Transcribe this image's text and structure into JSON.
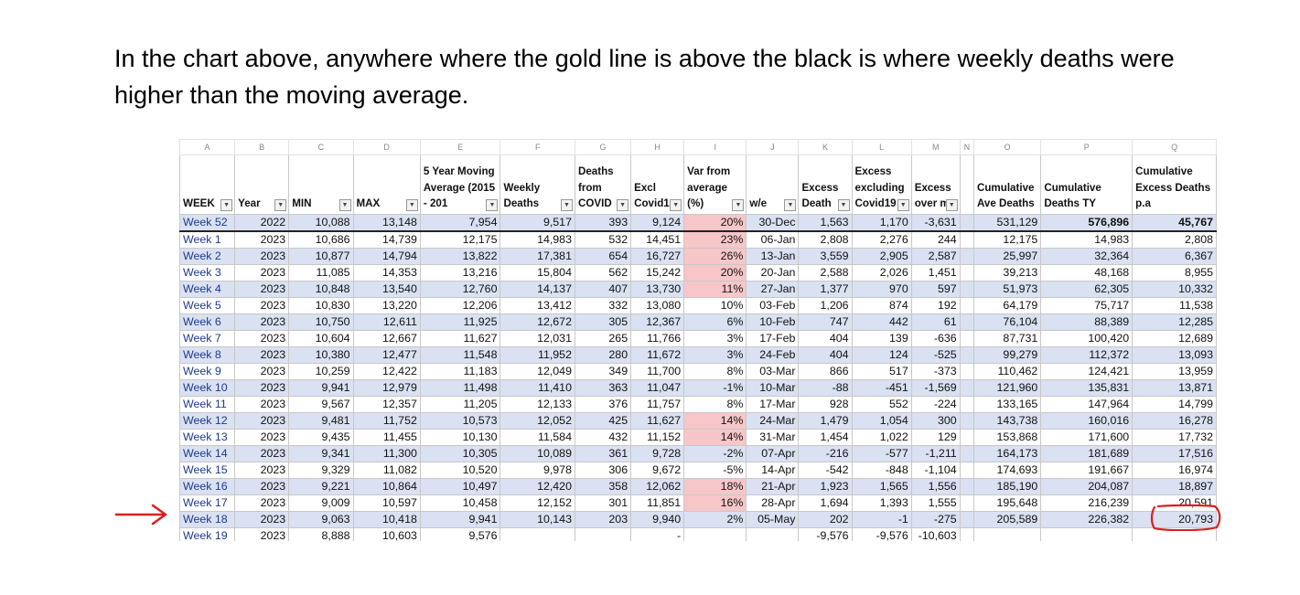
{
  "caption": "In the chart above, anywhere where the gold line is above the black is where weekly deaths were higher than the moving average.",
  "column_letters": [
    "A",
    "B",
    "C",
    "D",
    "E",
    "F",
    "G",
    "H",
    "I",
    "J",
    "K",
    "L",
    "M",
    "N",
    "O",
    "P",
    "Q"
  ],
  "headers": [
    {
      "text": "WEEK",
      "filter": true
    },
    {
      "text": "Year",
      "filter": true
    },
    {
      "text": "MIN",
      "filter": true
    },
    {
      "text": "MAX",
      "filter": true
    },
    {
      "text": "5 Year Moving Average (2015 - 201",
      "filter": true
    },
    {
      "text": "Weekly Deaths",
      "filter": true
    },
    {
      "text": "Deaths from COVID",
      "filter": true
    },
    {
      "text": "Excl Covid1",
      "filter": true
    },
    {
      "text": "Var from average (%)",
      "filter": true
    },
    {
      "text": "w/e",
      "filter": true
    },
    {
      "text": "Excess Death",
      "filter": true
    },
    {
      "text": "Excess excluding Covid19",
      "filter": true
    },
    {
      "text": "Excess over m",
      "filter": true
    },
    {
      "text": "",
      "filter": false
    },
    {
      "text": "Cumulative Ave Deaths",
      "filter": false
    },
    {
      "text": "Cumulative Deaths TY",
      "filter": false
    },
    {
      "text": "Cumulative Excess Deaths p.a",
      "filter": false
    }
  ],
  "rows": [
    [
      "Week 52",
      "2022",
      "10,088",
      "13,148",
      "7,954",
      "9,517",
      "393",
      "9,124",
      "20%",
      "30-Dec",
      "1,563",
      "1,170",
      "-3,631",
      "",
      "531,129",
      "576,896",
      "45,767"
    ],
    [
      "Week 1",
      "2023",
      "10,686",
      "14,739",
      "12,175",
      "14,983",
      "532",
      "14,451",
      "23%",
      "06-Jan",
      "2,808",
      "2,276",
      "244",
      "",
      "12,175",
      "14,983",
      "2,808"
    ],
    [
      "Week 2",
      "2023",
      "10,877",
      "14,794",
      "13,822",
      "17,381",
      "654",
      "16,727",
      "26%",
      "13-Jan",
      "3,559",
      "2,905",
      "2,587",
      "",
      "25,997",
      "32,364",
      "6,367"
    ],
    [
      "Week 3",
      "2023",
      "11,085",
      "14,353",
      "13,216",
      "15,804",
      "562",
      "15,242",
      "20%",
      "20-Jan",
      "2,588",
      "2,026",
      "1,451",
      "",
      "39,213",
      "48,168",
      "8,955"
    ],
    [
      "Week 4",
      "2023",
      "10,848",
      "13,540",
      "12,760",
      "14,137",
      "407",
      "13,730",
      "11%",
      "27-Jan",
      "1,377",
      "970",
      "597",
      "",
      "51,973",
      "62,305",
      "10,332"
    ],
    [
      "Week 5",
      "2023",
      "10,830",
      "13,220",
      "12,206",
      "13,412",
      "332",
      "13,080",
      "10%",
      "03-Feb",
      "1,206",
      "874",
      "192",
      "",
      "64,179",
      "75,717",
      "11,538"
    ],
    [
      "Week 6",
      "2023",
      "10,750",
      "12,611",
      "11,925",
      "12,672",
      "305",
      "12,367",
      "6%",
      "10-Feb",
      "747",
      "442",
      "61",
      "",
      "76,104",
      "88,389",
      "12,285"
    ],
    [
      "Week 7",
      "2023",
      "10,604",
      "12,667",
      "11,627",
      "12,031",
      "265",
      "11,766",
      "3%",
      "17-Feb",
      "404",
      "139",
      "-636",
      "",
      "87,731",
      "100,420",
      "12,689"
    ],
    [
      "Week 8",
      "2023",
      "10,380",
      "12,477",
      "11,548",
      "11,952",
      "280",
      "11,672",
      "3%",
      "24-Feb",
      "404",
      "124",
      "-525",
      "",
      "99,279",
      "112,372",
      "13,093"
    ],
    [
      "Week 9",
      "2023",
      "10,259",
      "12,422",
      "11,183",
      "12,049",
      "349",
      "11,700",
      "8%",
      "03-Mar",
      "866",
      "517",
      "-373",
      "",
      "110,462",
      "124,421",
      "13,959"
    ],
    [
      "Week 10",
      "2023",
      "9,941",
      "12,979",
      "11,498",
      "11,410",
      "363",
      "11,047",
      "-1%",
      "10-Mar",
      "-88",
      "-451",
      "-1,569",
      "",
      "121,960",
      "135,831",
      "13,871"
    ],
    [
      "Week 11",
      "2023",
      "9,567",
      "12,357",
      "11,205",
      "12,133",
      "376",
      "11,757",
      "8%",
      "17-Mar",
      "928",
      "552",
      "-224",
      "",
      "133,165",
      "147,964",
      "14,799"
    ],
    [
      "Week 12",
      "2023",
      "9,481",
      "11,752",
      "10,573",
      "12,052",
      "425",
      "11,627",
      "14%",
      "24-Mar",
      "1,479",
      "1,054",
      "300",
      "",
      "143,738",
      "160,016",
      "16,278"
    ],
    [
      "Week 13",
      "2023",
      "9,435",
      "11,455",
      "10,130",
      "11,584",
      "432",
      "11,152",
      "14%",
      "31-Mar",
      "1,454",
      "1,022",
      "129",
      "",
      "153,868",
      "171,600",
      "17,732"
    ],
    [
      "Week 14",
      "2023",
      "9,341",
      "11,300",
      "10,305",
      "10,089",
      "361",
      "9,728",
      "-2%",
      "07-Apr",
      "-216",
      "-577",
      "-1,211",
      "",
      "164,173",
      "181,689",
      "17,516"
    ],
    [
      "Week 15",
      "2023",
      "9,329",
      "11,082",
      "10,520",
      "9,978",
      "306",
      "9,672",
      "-5%",
      "14-Apr",
      "-542",
      "-848",
      "-1,104",
      "",
      "174,693",
      "191,667",
      "16,974"
    ],
    [
      "Week 16",
      "2023",
      "9,221",
      "10,864",
      "10,497",
      "12,420",
      "358",
      "12,062",
      "18%",
      "21-Apr",
      "1,923",
      "1,565",
      "1,556",
      "",
      "185,190",
      "204,087",
      "18,897"
    ],
    [
      "Week 17",
      "2023",
      "9,009",
      "10,597",
      "10,458",
      "12,152",
      "301",
      "11,851",
      "16%",
      "28-Apr",
      "1,694",
      "1,393",
      "1,555",
      "",
      "195,648",
      "216,239",
      "20,591"
    ],
    [
      "Week 18",
      "2023",
      "9,063",
      "10,418",
      "9,941",
      "10,143",
      "203",
      "9,940",
      "2%",
      "05-May",
      "202",
      "-1",
      "-275",
      "",
      "205,589",
      "226,382",
      "20,793"
    ],
    [
      "Week 19",
      "2023",
      "8,888",
      "10,603",
      "9,576",
      "",
      "",
      "-",
      "",
      "",
      "-9,576",
      "-9,576",
      "-10,603",
      "",
      "",
      "",
      ""
    ]
  ],
  "highlight_rows_pink_var": [
    0,
    1,
    2,
    3,
    4,
    12,
    13,
    16,
    17
  ],
  "colors": {
    "band_blue": "#d9e1f2",
    "pink": "#f7c6c8",
    "annotation_red": "#d92020"
  }
}
